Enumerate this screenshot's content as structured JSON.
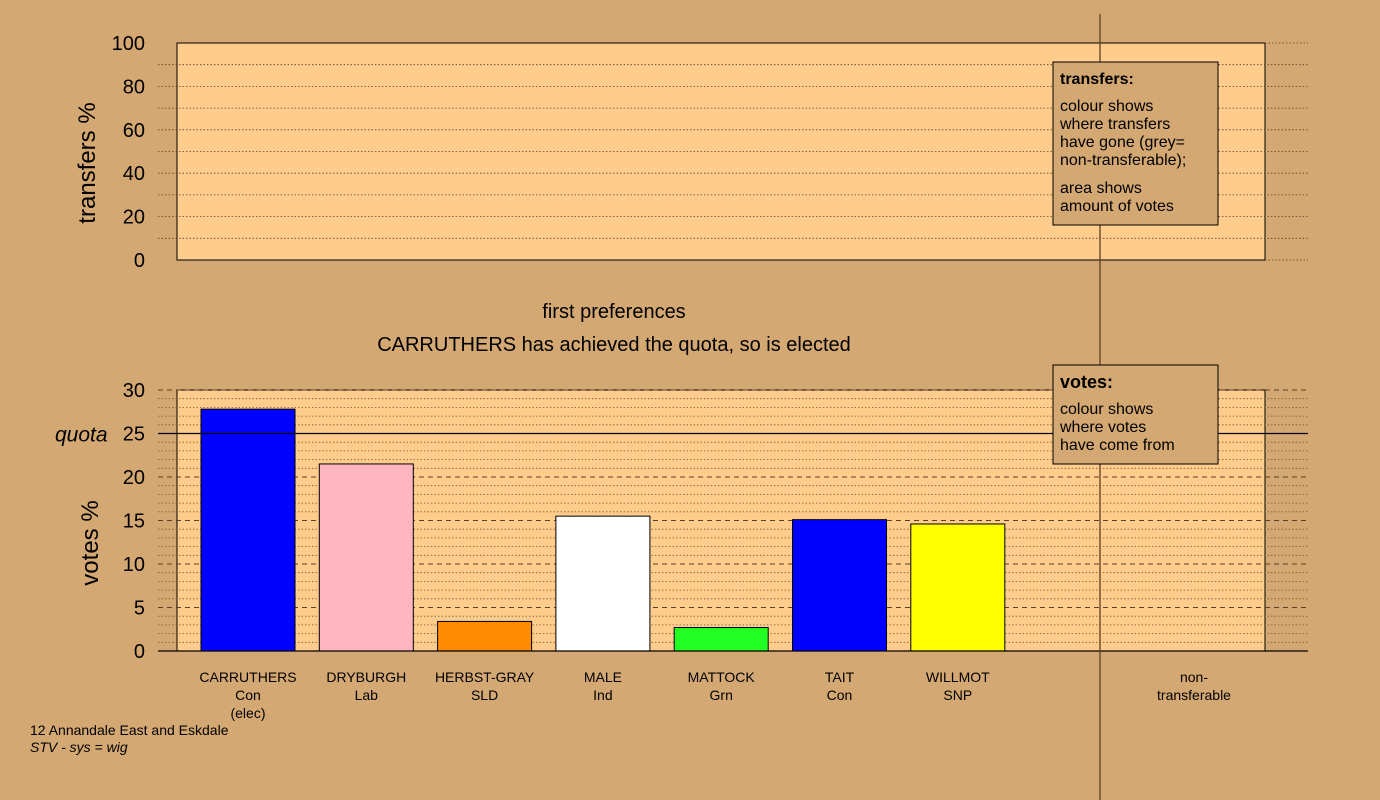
{
  "chart_data": [
    {
      "type": "bar",
      "panel": "transfers",
      "ylabel": "transfers %",
      "ylim": [
        0,
        100
      ],
      "yticks": [
        "0",
        "20",
        "40",
        "60",
        "80",
        "100"
      ],
      "grid": true,
      "series": []
    },
    {
      "type": "bar",
      "panel": "votes",
      "ylabel": "votes %",
      "ylim": [
        0,
        30
      ],
      "yticks": [
        "0",
        "5",
        "10",
        "15",
        "20",
        "25",
        "30"
      ],
      "quota_label": "quota",
      "quota": 25,
      "grid": true,
      "categories": [
        {
          "name": "CARRUTHERS",
          "party": "Con",
          "status": "(elec)",
          "value": 27.8,
          "color": "#0000ff"
        },
        {
          "name": "DRYBURGH",
          "party": "Lab",
          "status": "",
          "value": 21.5,
          "color": "#ffb6c1"
        },
        {
          "name": "HERBST-GRAY",
          "party": "SLD",
          "status": "",
          "value": 3.4,
          "color": "#ff8c00"
        },
        {
          "name": "MALE",
          "party": "Ind",
          "status": "",
          "value": 15.5,
          "color": "#ffffff"
        },
        {
          "name": "MATTOCK",
          "party": "Grn",
          "status": "",
          "value": 2.7,
          "color": "#22ff22"
        },
        {
          "name": "TAIT",
          "party": "Con",
          "status": "",
          "value": 15.1,
          "color": "#0000ff"
        },
        {
          "name": "WILLMOT",
          "party": "SNP",
          "status": "",
          "value": 14.6,
          "color": "#ffff00"
        }
      ],
      "extra_category": {
        "line1": "non-",
        "line2": "transferable"
      }
    }
  ],
  "headings": {
    "stage": "first preferences",
    "message": "CARRUTHERS has achieved the quota, so is elected"
  },
  "legend_transfers": {
    "title": "transfers:",
    "lines1": [
      "colour shows",
      "where transfers",
      "have gone (grey=",
      "non-transferable);"
    ],
    "lines2": [
      "area shows",
      "amount of votes"
    ]
  },
  "legend_votes": {
    "title": "votes:",
    "lines": [
      "colour shows",
      "where votes",
      "have come from"
    ]
  },
  "footer": {
    "ward": "12 Annandale East and Eskdale",
    "system": "STV - sys = wig"
  },
  "colors": {
    "background": "#d4a872",
    "plot_area": "#ffcc8c"
  }
}
